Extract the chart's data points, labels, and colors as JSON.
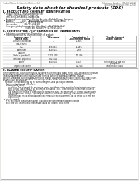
{
  "bg_color": "#e8e8e4",
  "page_bg": "#ffffff",
  "title": "Safety data sheet for chemical products (SDS)",
  "header_left": "Product Name: Lithium Ion Battery Cell",
  "header_right_line1": "Substance Number: 999-049-00915",
  "header_right_line2": "Established / Revision: Dec.1.2010",
  "section1_title": "1. PRODUCT AND COMPANY IDENTIFICATION",
  "section1_items": [
    "  • Product name: Lithium Ion Battery Cell",
    "  • Product code: Cylindrical type cell",
    "      INR18650J, INR18650L, INR18650A",
    "  • Company name:       Sanyo Electric Co., Ltd.,  Mobile Energy Company",
    "  • Address:             2001  Kamikosaka, Sumoto-City, Hyogo, Japan",
    "  • Telephone number:   +81-799-26-4111",
    "  • Fax number:         +81-799-26-4120",
    "  • Emergency telephone number (Weekday): +81-799-26-3942",
    "                                     (Night and holiday): +81-799-26-4101"
  ],
  "section2_title": "2. COMPOSITION / INFORMATION ON INGREDIENTS",
  "section2_sub": "  • Substance or preparation: Preparation",
  "section2_sub2": "  • Information about the chemical nature of product:",
  "table_headers_row1": [
    "Common name /",
    "CAS number",
    "Concentration /",
    "Classification and"
  ],
  "table_headers_row2": [
    "Several name",
    "",
    "Concentration range",
    "hazard labeling"
  ],
  "table_rows": [
    [
      "Lithium cobalt oxide",
      "-",
      "30-60%",
      "-"
    ],
    [
      "(LiMnCoNiO₂)",
      "",
      "",
      ""
    ],
    [
      "Iron",
      "7439-89-6",
      "15-25%",
      "-"
    ],
    [
      "Aluminum",
      "7429-90-5",
      "2-6%",
      "-"
    ],
    [
      "Graphite",
      "",
      "",
      ""
    ],
    [
      "(flake or graphite-I)",
      "77782-42-5",
      "10-25%",
      "-"
    ],
    [
      "(artificial graphite-I)",
      "7782-44-2",
      "",
      ""
    ],
    [
      "Copper",
      "7440-50-8",
      "5-15%",
      "Sensitization of the skin\ngroup No.2"
    ],
    [
      "Organic electrolyte",
      "-",
      "10-20%",
      "Inflammable liquid"
    ]
  ],
  "section3_title": "3. HAZARD IDENTIFICATION",
  "section3_lines": [
    "For the battery cell, chemical materials are stored in a hermetically sealed metal case, designed to withstand",
    "temperatures in possible-use conditions. During normal use, as a result, during normal use, there is no",
    "physical danger of ignition or explosion and chemical danger of hazardous materials leakage.",
    "",
    "However, if exposed to a fire, added mechanical shocks, decompose, when electric short-circuit may cause.",
    "No gas release cannot be operated. The battery cell case will be scratched of fire-patterns, hazardous",
    "materials may be released.",
    "    Moreover, if heated strongly by the surrounding fire, solid gas may be emitted.",
    "",
    "  • Most important hazard and effects:",
    "      Human health effects:",
    "          Inhalation: The release of the electrolyte has an anesthesia action and stimulates in respiratory tract.",
    "          Skin contact: The release of the electrolyte stimulates a skin. The electrolyte skin contact causes a",
    "          sore and stimulation on the skin.",
    "          Eye contact: The release of the electrolyte stimulates eyes. The electrolyte eye contact causes a sore",
    "          and stimulation on the eye. Especially, a substance that causes a strong inflammation of the eye is",
    "          contained.",
    "          Environmental effects: Since a battery cell remains in the environment, do not throw out it into the",
    "          environment.",
    "",
    "  • Specific hazards:",
    "      If the electrolyte contacts with water, it will generate detrimental hydrogen fluoride.",
    "      Since the seal electrolyte is inflammable liquid, do not bring close to fire."
  ]
}
